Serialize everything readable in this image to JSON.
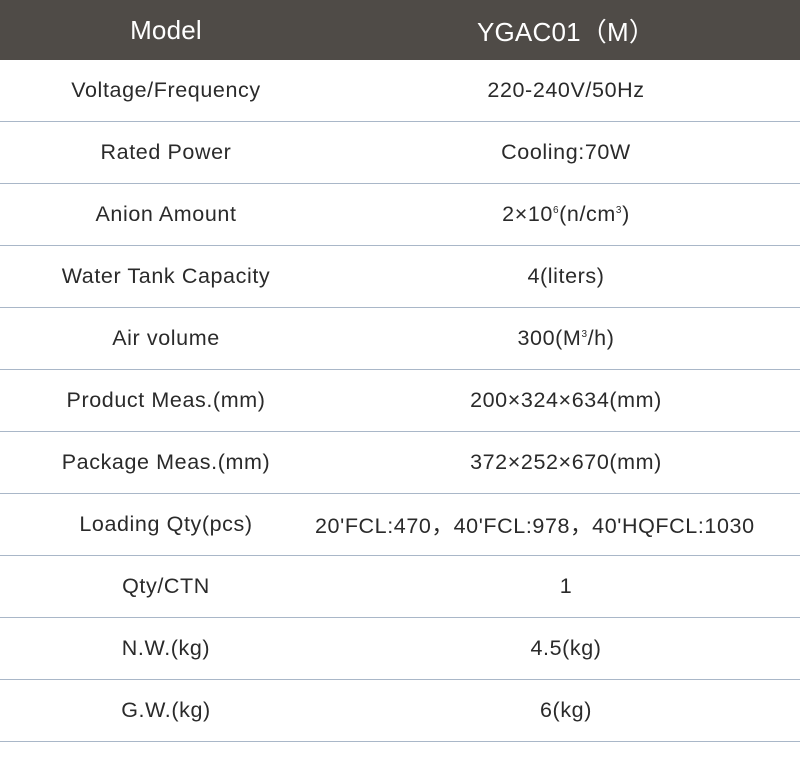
{
  "header": {
    "left_label": "Model",
    "right_label": "YGAC01（M）"
  },
  "rows": [
    {
      "label": "Voltage/Frequency",
      "value": "220-240V/50Hz"
    },
    {
      "label": "Rated Power",
      "value": "Cooling:70W"
    },
    {
      "label": "Anion Amount",
      "value_pre": "2×10",
      "value_sup1": "6",
      "value_mid": "(n/cm",
      "value_sup2": "3",
      "value_post": ")"
    },
    {
      "label": "Water Tank Capacity",
      "value": "4(liters)"
    },
    {
      "label": "Air volume",
      "value_pre": "300(M",
      "value_sup1": "3",
      "value_post": "/h)"
    },
    {
      "label": "Product Meas.(mm)",
      "value": "200×324×634(mm)"
    },
    {
      "label": "Package Meas.(mm)",
      "value": "372×252×670(mm)"
    },
    {
      "label": "Loading Qty(pcs)",
      "value": "20'FCL:470，40'FCL:978，40'HQFCL:1030"
    },
    {
      "label": "Qty/CTN",
      "value": "1"
    },
    {
      "label": "N.W.(kg)",
      "value": "4.5(kg)"
    },
    {
      "label": "G.W.(kg)",
      "value": "6(kg)"
    }
  ],
  "colors": {
    "header_bg": "#4f4b47",
    "header_text": "#ffffff",
    "row_divider": "#a9b7c8"
  }
}
